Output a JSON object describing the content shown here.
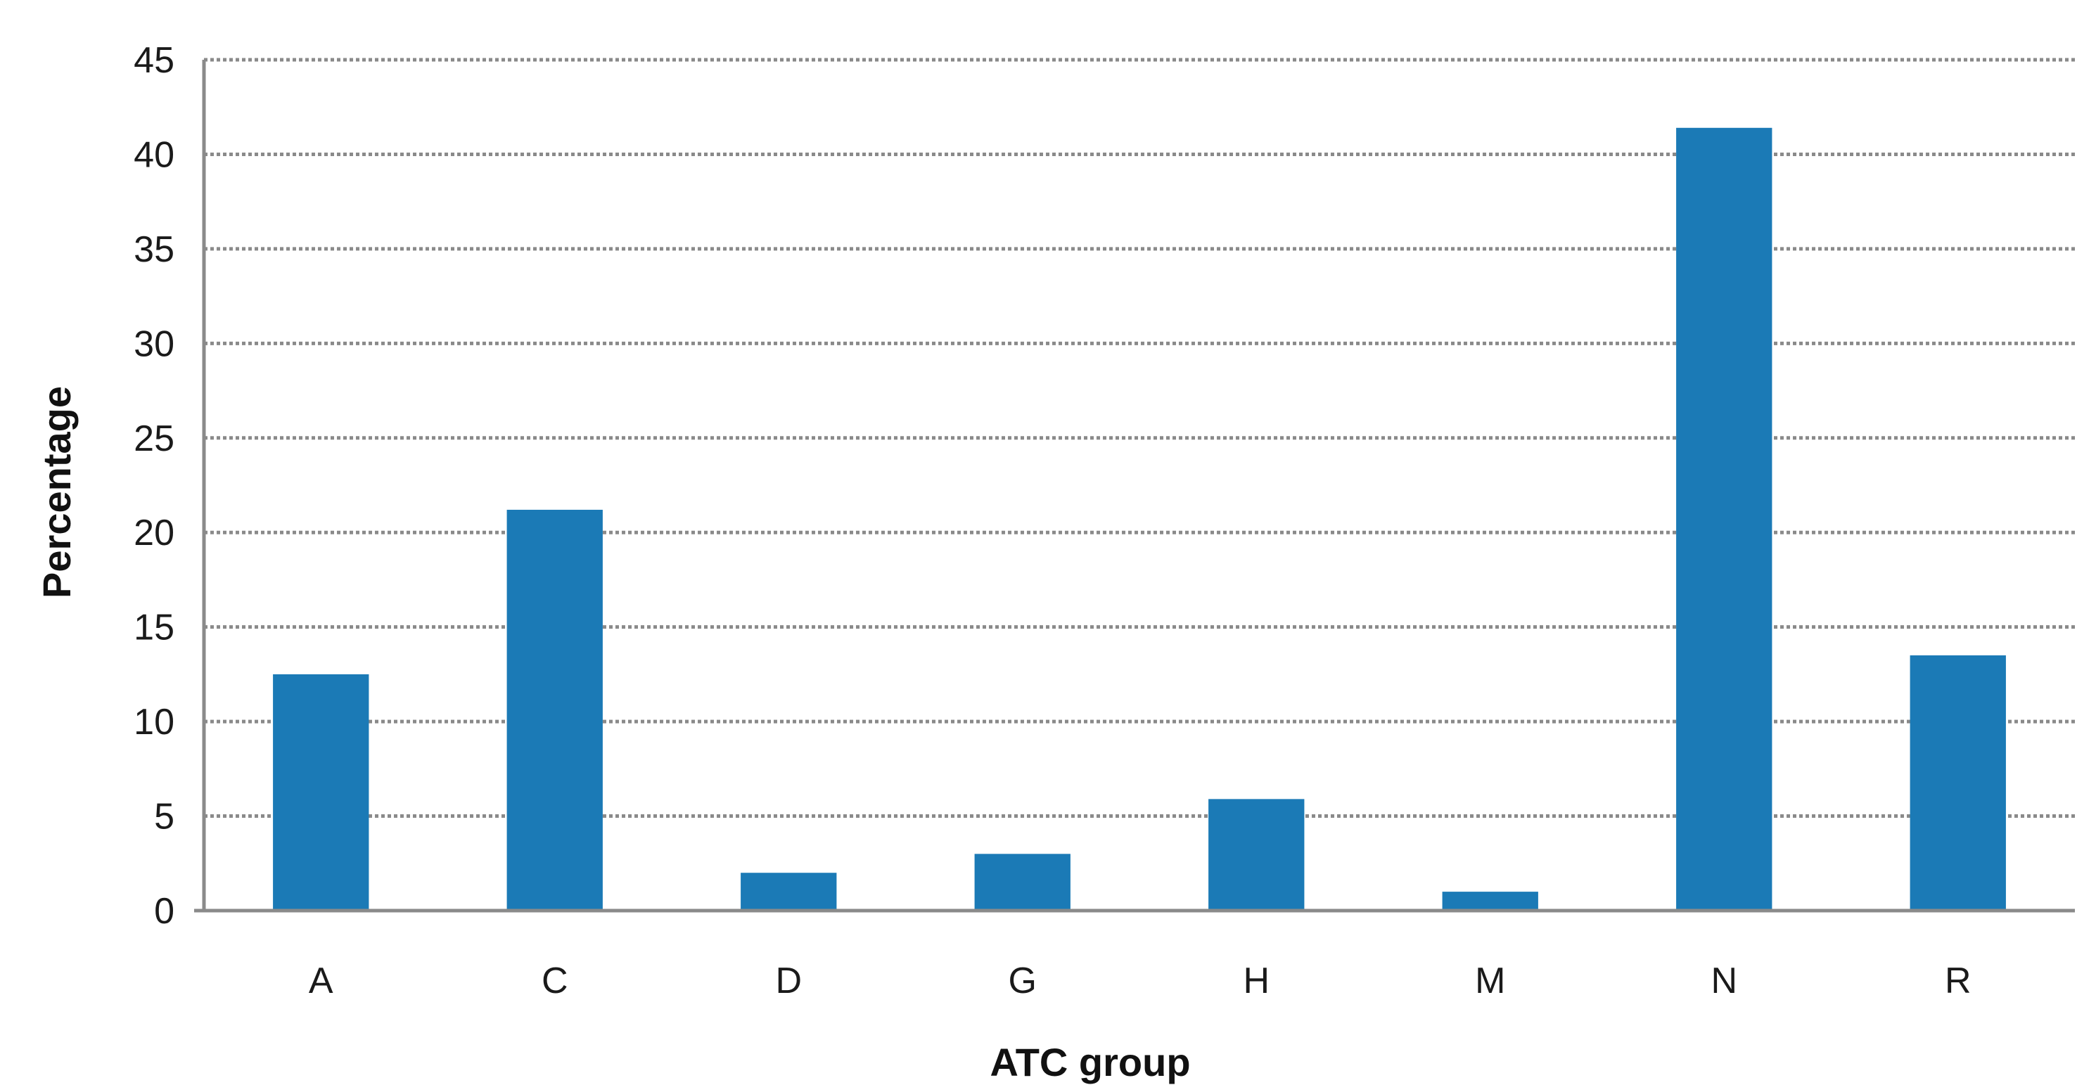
{
  "chart_data": {
    "type": "bar",
    "categories": [
      "A",
      "C",
      "D",
      "G",
      "H",
      "M",
      "N",
      "R"
    ],
    "values": [
      12.5,
      21.2,
      2.0,
      3.0,
      5.9,
      1.0,
      41.4,
      13.5
    ],
    "title": "",
    "xlabel": "ATC group",
    "ylabel": "Percentage",
    "ylim": [
      0,
      45
    ],
    "yticks": [
      "0",
      "5",
      "10",
      "15",
      "20",
      "25",
      "30",
      "35",
      "40",
      "45"
    ],
    "grid": true,
    "bar_color": "#1b7ab6"
  }
}
